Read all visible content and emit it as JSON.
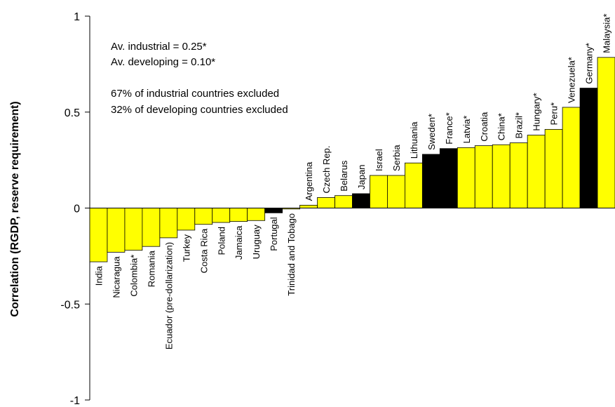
{
  "chart_data": {
    "type": "bar",
    "ylabel": "Correlation (RGDP, reserve requirement)",
    "ylim": [
      -1,
      1
    ],
    "yticks": [
      "1",
      "0.5",
      "0",
      "-0.5",
      "-1"
    ],
    "ytick_values": [
      1,
      0.5,
      0,
      -0.5,
      -1
    ],
    "grid": false,
    "annotations": [
      "Av. industrial = 0.25*",
      "Av. developing = 0.10*",
      "67% of industrial countries excluded",
      "32% of developing countries excluded"
    ],
    "colors": {
      "industrial": "#000000",
      "developing": "#ffff00",
      "outline": "#000000"
    },
    "categories": [
      "India",
      "Nicaragua",
      "Colombia*",
      "Romania",
      "Ecuador (pre-dollarization)",
      "Turkey",
      "Costa Rica",
      "Poland",
      "Jamaica",
      "Uruguay",
      "Portugal",
      "Trinidad and Tobago",
      "Argentina",
      "Czech Rep.",
      "Belarus",
      "Japan",
      "Israel",
      "Serbia",
      "Lithuania",
      "Sweden*",
      "France*",
      "Latvia*",
      "Croatia",
      "China*",
      "Brazil*",
      "Hungary*",
      "Peru*",
      "Venezuela*",
      "Germany*",
      "Malaysia*"
    ],
    "series": [
      {
        "values": [
          -0.28,
          -0.23,
          -0.22,
          -0.2,
          -0.155,
          -0.115,
          -0.085,
          -0.075,
          -0.07,
          -0.065,
          -0.025,
          -0.005,
          0.015,
          0.055,
          0.065,
          0.075,
          0.17,
          0.17,
          0.235,
          0.28,
          0.31,
          0.315,
          0.325,
          0.33,
          0.34,
          0.38,
          0.41,
          0.525,
          0.625,
          0.785
        ],
        "group": [
          "developing",
          "developing",
          "developing",
          "developing",
          "developing",
          "developing",
          "developing",
          "developing",
          "developing",
          "developing",
          "industrial",
          "developing",
          "developing",
          "developing",
          "developing",
          "industrial",
          "developing",
          "developing",
          "developing",
          "industrial",
          "industrial",
          "developing",
          "developing",
          "developing",
          "developing",
          "developing",
          "developing",
          "developing",
          "industrial",
          "developing"
        ]
      }
    ]
  }
}
